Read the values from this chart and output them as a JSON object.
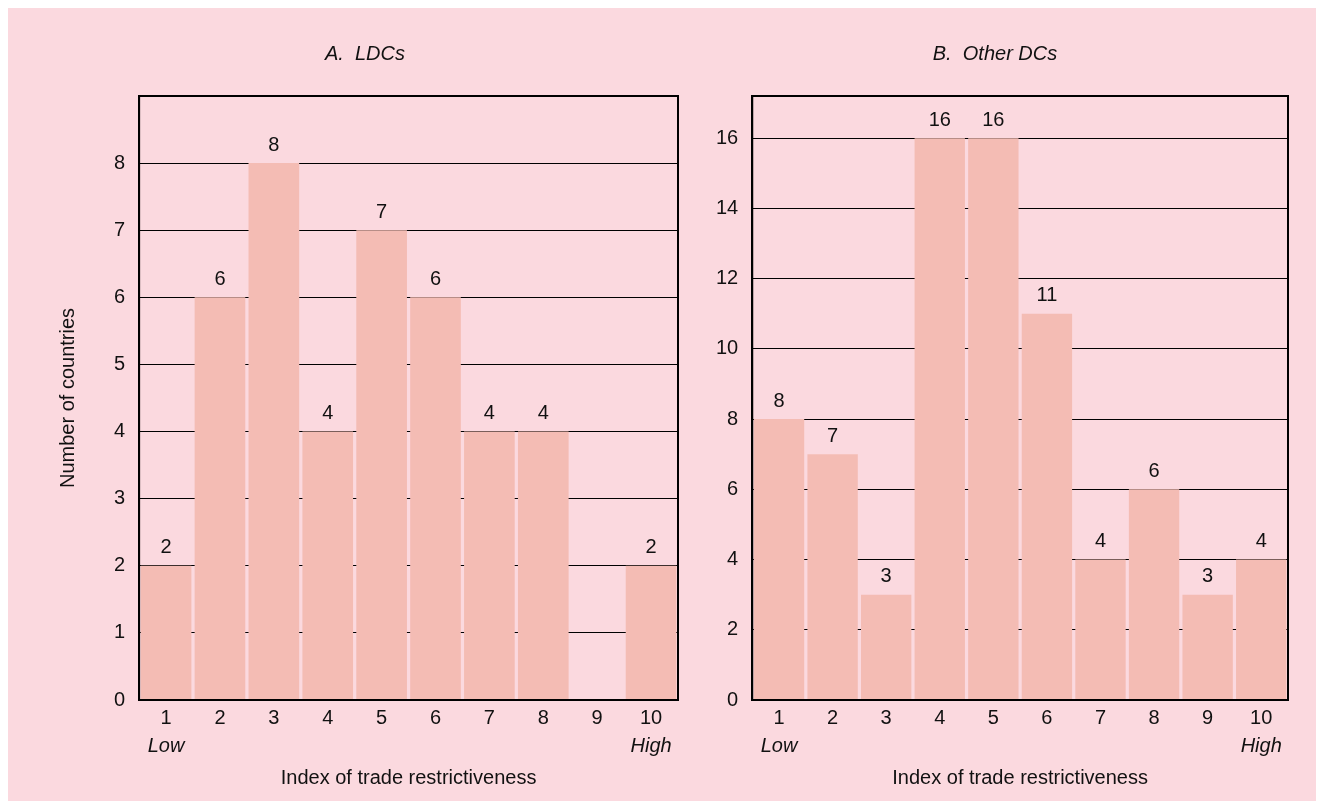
{
  "chart_data": [
    {
      "type": "bar",
      "title": "A.  LDCs",
      "xlabel": "Index of trade restrictiveness",
      "ylabel": "Number of countries",
      "categories": [
        "1",
        "2",
        "3",
        "4",
        "5",
        "6",
        "7",
        "8",
        "9",
        "10"
      ],
      "values": [
        2,
        6,
        8,
        4,
        7,
        6,
        4,
        4,
        0,
        2
      ],
      "color": "#f4bcb4",
      "ylim": [
        0,
        9
      ],
      "yticks": [
        0,
        1,
        2,
        3,
        4,
        5,
        6,
        7,
        8
      ],
      "grid": "y",
      "value_labels": [
        "2",
        "6",
        "8",
        "4",
        "7",
        "6",
        "4",
        "4",
        null,
        "2"
      ],
      "legend": false,
      "annotations": [
        "Low",
        "High"
      ]
    },
    {
      "type": "bar",
      "title": "B.  Other DCs",
      "xlabel": "Index of trade restrictiveness",
      "categories": [
        "1",
        "2",
        "3",
        "4",
        "5",
        "6",
        "7",
        "8",
        "9",
        "10"
      ],
      "values": [
        8,
        7,
        3,
        16,
        16,
        11,
        4,
        6,
        3,
        4
      ],
      "color": "#f4bcb4",
      "ylim": [
        0,
        17.2
      ],
      "yticks": [
        0,
        2,
        4,
        6,
        8,
        10,
        12,
        14,
        16
      ],
      "grid": "y",
      "data_labels": true,
      "legend": false,
      "annotations": [
        "Low",
        "High"
      ]
    }
  ]
}
